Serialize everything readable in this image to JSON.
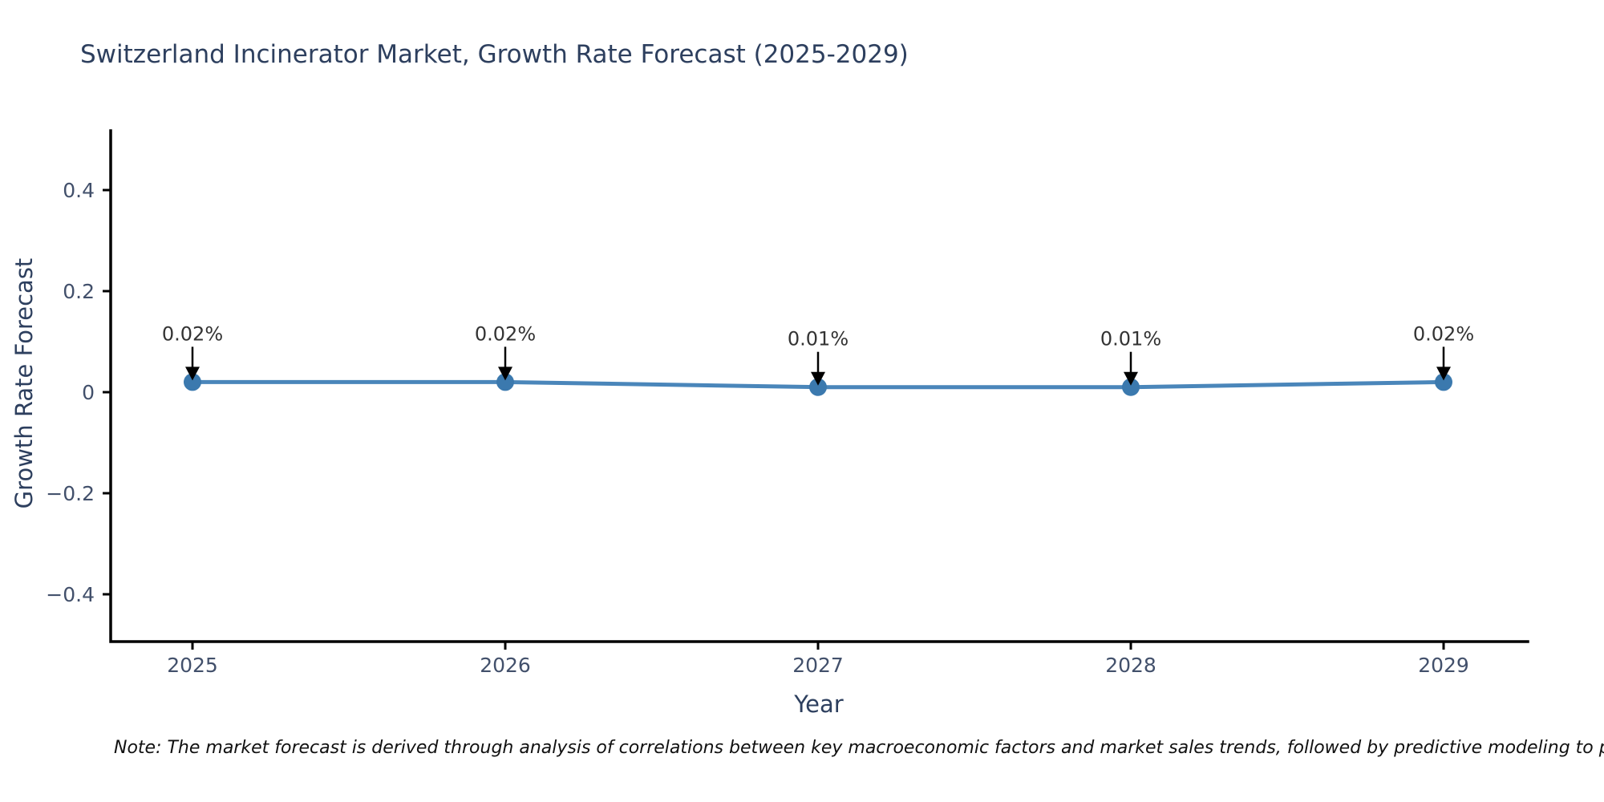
{
  "page": {
    "background": "#ffffff"
  },
  "chart": {
    "title": "Switzerland Incinerator Market, Growth Rate Forecast (2025-2029)",
    "xlabel": "Year",
    "ylabel": "Growth Rate Forecast"
  },
  "note": {
    "text": "Note: The market forecast is derived through analysis of correlations between key macroeconomic factors and market sales trends, followed by predictive modeling to project future sales"
  },
  "chart_data": {
    "type": "line",
    "title": "Switzerland Incinerator Market, Growth Rate Forecast (2025-2029)",
    "xlabel": "Year",
    "ylabel": "Growth Rate Forecast",
    "categories": [
      "2025",
      "2026",
      "2027",
      "2028",
      "2029"
    ],
    "values": [
      0.02,
      0.02,
      0.01,
      0.01,
      0.02
    ],
    "point_labels": [
      "0.02%",
      "0.02%",
      "0.01%",
      "0.01%",
      "0.02%"
    ],
    "yticks": [
      0.4,
      0.2,
      0,
      -0.2,
      -0.4
    ],
    "ytick_labels": [
      "0.4",
      "0.2",
      "0",
      "−0.2",
      "−0.4"
    ],
    "ylim": [
      -0.5,
      0.52
    ],
    "grid": false,
    "legend": false,
    "annotation_style": "black-down-arrow-to-each-point",
    "colors": {
      "line": "#4a86ba",
      "marker": "#3b79ae",
      "axis": "#000000",
      "arrow": "#000000",
      "title_text": "#2d3f5e",
      "tick_text": "#42506b",
      "annotation_text": "#333333",
      "note_text": "#111111"
    }
  }
}
